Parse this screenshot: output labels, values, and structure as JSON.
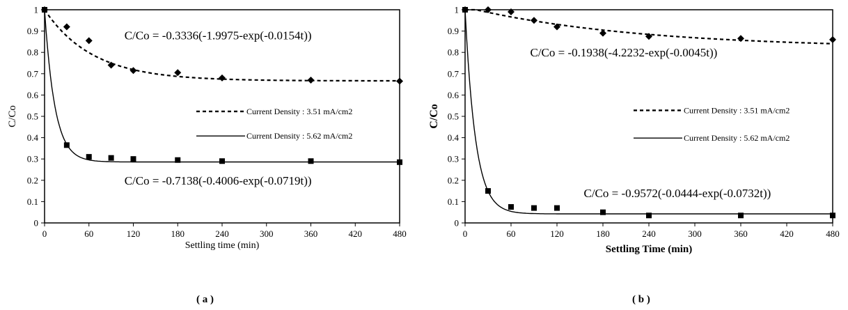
{
  "captions": [
    "( a )",
    "( b )"
  ],
  "chart_data": [
    {
      "type": "scatter",
      "panel": "a",
      "xlabel": "Settling time (min)",
      "ylabel": "C/Co",
      "xlim": [
        0,
        480
      ],
      "ylim": [
        0,
        1
      ],
      "xticks": [
        0,
        60,
        120,
        180,
        240,
        300,
        360,
        420,
        480
      ],
      "yticks": [
        0,
        0.1,
        0.2,
        0.3,
        0.4,
        0.5,
        0.6,
        0.7,
        0.8,
        0.9,
        1
      ],
      "ytick_labels": [
        "0",
        "0.1",
        "0.2",
        "0.3",
        "0.4",
        "0.5",
        "0.6",
        "0.7",
        "0.8",
        "0.9",
        "1"
      ],
      "grid": false,
      "legend_placement": "right-middle",
      "series": [
        {
          "name": "Current Density : 3.51 mA/cm2",
          "marker": "diamond",
          "line": "dashed",
          "x": [
            0,
            30,
            60,
            90,
            120,
            180,
            240,
            360,
            480
          ],
          "y": [
            1.0,
            0.92,
            0.855,
            0.74,
            0.715,
            0.705,
            0.68,
            0.67,
            0.665
          ],
          "fit": {
            "a": -0.3336,
            "b": -1.9975,
            "k": 0.0154
          }
        },
        {
          "name": "Current Density : 5.62 mA/cm2",
          "marker": "square",
          "line": "solid",
          "x": [
            0,
            30,
            60,
            90,
            120,
            180,
            240,
            360,
            480
          ],
          "y": [
            1.0,
            0.365,
            0.31,
            0.305,
            0.3,
            0.295,
            0.29,
            0.29,
            0.285
          ],
          "fit": {
            "a": -0.7138,
            "b": -0.4006,
            "k": 0.0719
          }
        }
      ],
      "annotations": [
        {
          "text": "C/Co = -0.3336(-1.9975-exp(-0.0154t))",
          "x": 108,
          "y": 0.88
        },
        {
          "text": "C/Co = -0.7138(-0.4006-exp(-0.0719t))",
          "x": 108,
          "y": 0.2
        }
      ]
    },
    {
      "type": "scatter",
      "panel": "b",
      "xlabel": "Settling Time (min)",
      "ylabel": "C/Co",
      "xlim": [
        0,
        480
      ],
      "ylim": [
        0,
        1
      ],
      "xticks": [
        0,
        60,
        120,
        180,
        240,
        300,
        360,
        420,
        480
      ],
      "yticks": [
        0,
        0.1,
        0.2,
        0.3,
        0.4,
        0.5,
        0.6,
        0.7,
        0.8,
        0.9,
        1
      ],
      "ytick_labels": [
        "0",
        "0.1",
        "0.2",
        "0.3",
        "0.4",
        "0.5",
        "0.6",
        "0.7",
        "0.8",
        "0.9",
        "1"
      ],
      "grid": false,
      "legend_placement": "right-middle",
      "series": [
        {
          "name": "Current Density : 3.51 mA/cm2",
          "marker": "diamond",
          "line": "dashed",
          "x": [
            0,
            30,
            60,
            90,
            120,
            180,
            240,
            360,
            480
          ],
          "y": [
            1.0,
            1.0,
            0.99,
            0.95,
            0.92,
            0.89,
            0.875,
            0.865,
            0.86
          ],
          "fit": {
            "a": -0.1938,
            "b": -4.2232,
            "k": 0.0045
          }
        },
        {
          "name": "Current Density : 5.62 mA/cm2",
          "marker": "square",
          "line": "solid",
          "x": [
            0,
            30,
            60,
            90,
            120,
            180,
            240,
            360,
            480
          ],
          "y": [
            1.0,
            0.15,
            0.075,
            0.07,
            0.07,
            0.05,
            0.035,
            0.035,
            0.035
          ],
          "fit": {
            "a": -0.9572,
            "b": -0.0444,
            "k": 0.0732
          }
        }
      ],
      "annotations": [
        {
          "text": "C/Co = -0.1938(-4.2232-exp(-0.0045t))",
          "x": 85,
          "y": 0.8
        },
        {
          "text": "C/Co = -0.9572(-0.0444-exp(-0.0732t))",
          "x": 155,
          "y": 0.14
        }
      ]
    }
  ]
}
